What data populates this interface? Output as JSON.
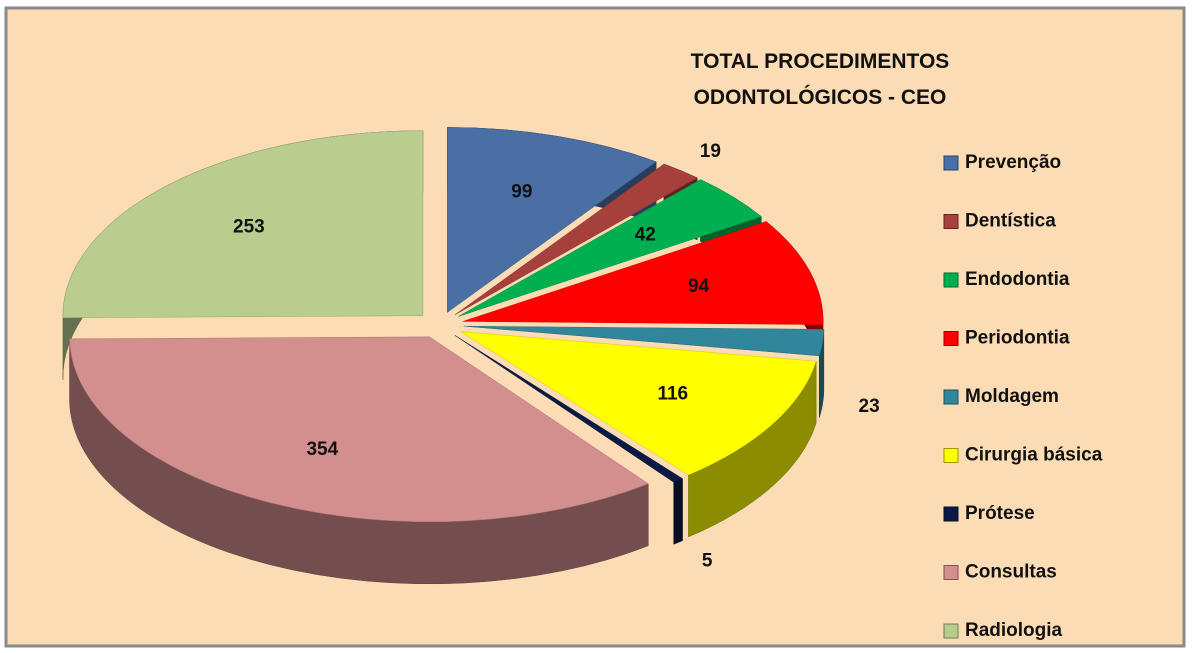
{
  "chart_data": {
    "type": "pie",
    "title": "TOTAL PROCEDIMENTOS ODONTOLÓGICOS - CEO",
    "categories": [
      "Prevenção",
      "Dentística",
      "Endodontia",
      "Periodontia",
      "Moldagem",
      "Cirurgia básica",
      "Prótese",
      "Consultas",
      "Radiologia"
    ],
    "values": [
      99,
      19,
      42,
      94,
      23,
      116,
      5,
      354,
      253
    ],
    "colors": [
      "#4a6fa5",
      "#a5403d",
      "#00b050",
      "#ff0000",
      "#31869b",
      "#ffff00",
      "#0b1a44",
      "#d38e8e",
      "#b9cd8f"
    ],
    "legend": "right"
  }
}
